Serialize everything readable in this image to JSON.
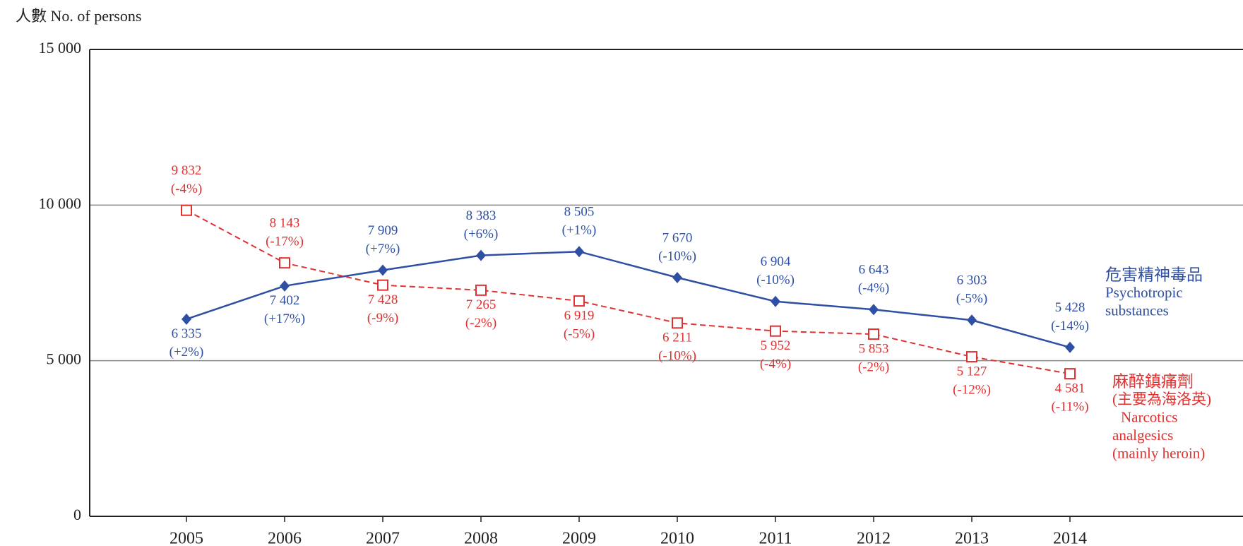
{
  "chart_data": {
    "type": "line",
    "y_label": "人數 No. of persons",
    "categories": [
      "2005",
      "2006",
      "2007",
      "2008",
      "2009",
      "2010",
      "2011",
      "2012",
      "2013",
      "2014"
    ],
    "ylim": [
      0,
      15000
    ],
    "yticks": [
      0,
      {
        "value": 5000,
        "label": "5 000"
      },
      {
        "value": 10000,
        "label": "10 000"
      },
      {
        "value": 15000,
        "label": "15 000"
      }
    ],
    "grid": true,
    "series": [
      {
        "name": "危害精神毒品",
        "name_lines": [
          "Psychotropic",
          "substances"
        ],
        "color": "#2e4fa3",
        "marker": "diamond",
        "dashed": false,
        "values": [
          6335,
          7402,
          7909,
          8383,
          8505,
          7670,
          6904,
          6643,
          6303,
          5428
        ],
        "value_labels": [
          "6 335",
          "7 402",
          "7 909",
          "8 383",
          "8 505",
          "7 670",
          "6 904",
          "6 643",
          "6 303",
          "5 428"
        ],
        "change_labels": [
          "(+2%)",
          "(+17%)",
          "(+7%)",
          "(+6%)",
          "(+1%)",
          "(-10%)",
          "(-10%)",
          "(-4%)",
          "(-5%)",
          "(-14%)"
        ]
      },
      {
        "name": "麻醉鎮痛劑",
        "name_lines": [
          "(主要為海洛英)",
          "Narcotics",
          "analgesics",
          "(mainly heroin)"
        ],
        "color": "#e03030",
        "marker": "square",
        "dashed": true,
        "values": [
          9832,
          8143,
          7428,
          7265,
          6919,
          6211,
          5952,
          5853,
          5127,
          4581
        ],
        "value_labels": [
          "9 832",
          "8 143",
          "7 428",
          "7 265",
          "6 919",
          "6 211",
          "5 952",
          "5 853",
          "5 127",
          "4 581"
        ],
        "change_labels": [
          "(-4%)",
          "(-17%)",
          "(-9%)",
          "(-2%)",
          "(-5%)",
          "(-10%)",
          "(-4%)",
          "(-2%)",
          "(-12%)",
          "(-11%)"
        ]
      }
    ]
  }
}
